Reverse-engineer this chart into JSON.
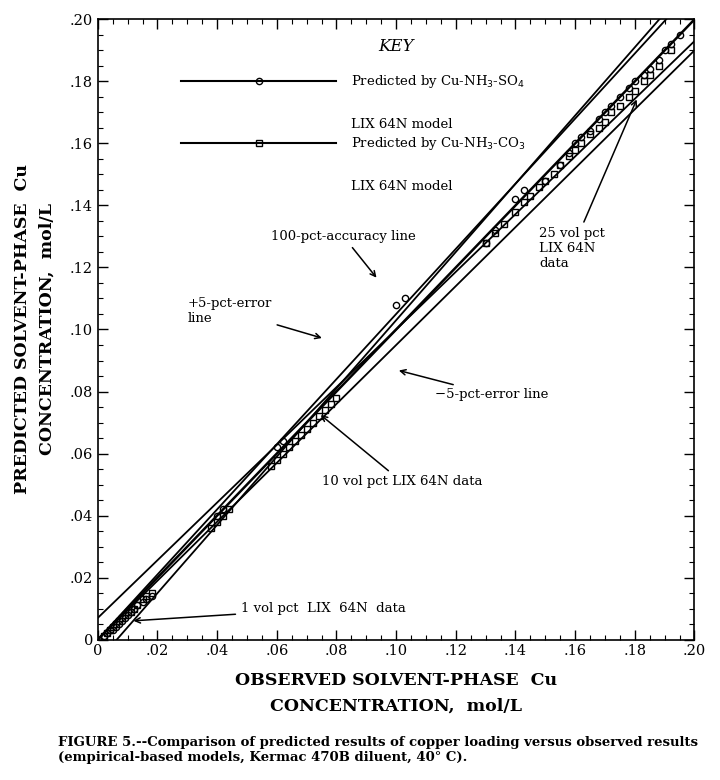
{
  "xlim": [
    0,
    0.2
  ],
  "ylim": [
    0,
    0.2
  ],
  "xticks": [
    0,
    0.02,
    0.04,
    0.06,
    0.08,
    0.1,
    0.12,
    0.14,
    0.16,
    0.18,
    0.2
  ],
  "yticks": [
    0,
    0.02,
    0.04,
    0.06,
    0.08,
    0.1,
    0.12,
    0.14,
    0.16,
    0.18,
    0.2
  ],
  "xlabel_line1": "OBSERVED SOLVENT-PHASE  Cu",
  "xlabel_line2": "CONCENTRATION,  mol/L",
  "ylabel_line1": "PREDICTED SOLVENT-PHASE  Cu",
  "ylabel_line2": "CONCENTRATION,  mol/L",
  "caption": "FIGURE 5.--Comparison of predicted results of copper loading versus observed results\n(empirical-based models, Kermac 470B diluent, 40° C).",
  "circle_data_x": [
    0.002,
    0.003,
    0.004,
    0.005,
    0.006,
    0.007,
    0.008,
    0.009,
    0.01,
    0.011,
    0.012,
    0.013,
    0.015,
    0.016,
    0.018,
    0.04,
    0.042,
    0.06,
    0.062,
    0.1,
    0.103,
    0.13,
    0.133,
    0.14,
    0.143,
    0.15,
    0.155,
    0.158,
    0.16,
    0.162,
    0.165,
    0.168,
    0.17,
    0.172,
    0.175,
    0.178,
    0.18,
    0.183,
    0.185,
    0.188,
    0.19,
    0.192,
    0.195
  ],
  "circle_data_y": [
    0.001,
    0.002,
    0.003,
    0.003,
    0.004,
    0.005,
    0.006,
    0.007,
    0.008,
    0.009,
    0.01,
    0.011,
    0.012,
    0.013,
    0.014,
    0.04,
    0.042,
    0.062,
    0.064,
    0.108,
    0.11,
    0.128,
    0.132,
    0.142,
    0.145,
    0.148,
    0.153,
    0.157,
    0.16,
    0.162,
    0.164,
    0.168,
    0.17,
    0.172,
    0.175,
    0.178,
    0.18,
    0.182,
    0.184,
    0.187,
    0.19,
    0.192,
    0.195
  ],
  "square_data_x": [
    0.002,
    0.003,
    0.004,
    0.005,
    0.006,
    0.007,
    0.008,
    0.009,
    0.01,
    0.011,
    0.012,
    0.013,
    0.015,
    0.016,
    0.018,
    0.038,
    0.04,
    0.042,
    0.044,
    0.058,
    0.06,
    0.062,
    0.064,
    0.066,
    0.068,
    0.07,
    0.072,
    0.074,
    0.076,
    0.078,
    0.08,
    0.13,
    0.133,
    0.136,
    0.14,
    0.143,
    0.145,
    0.148,
    0.15,
    0.153,
    0.155,
    0.158,
    0.16,
    0.162,
    0.165,
    0.168,
    0.17,
    0.172,
    0.175,
    0.178,
    0.18,
    0.183,
    0.185,
    0.188,
    0.192
  ],
  "square_data_y": [
    0.001,
    0.002,
    0.003,
    0.004,
    0.005,
    0.006,
    0.007,
    0.008,
    0.009,
    0.009,
    0.01,
    0.011,
    0.013,
    0.014,
    0.015,
    0.036,
    0.038,
    0.04,
    0.042,
    0.056,
    0.058,
    0.06,
    0.062,
    0.064,
    0.066,
    0.068,
    0.07,
    0.072,
    0.074,
    0.076,
    0.078,
    0.128,
    0.131,
    0.134,
    0.138,
    0.141,
    0.143,
    0.146,
    0.148,
    0.15,
    0.153,
    0.156,
    0.158,
    0.16,
    0.163,
    0.165,
    0.167,
    0.17,
    0.172,
    0.175,
    0.177,
    0.18,
    0.182,
    0.185,
    0.19
  ],
  "background_color": "white"
}
